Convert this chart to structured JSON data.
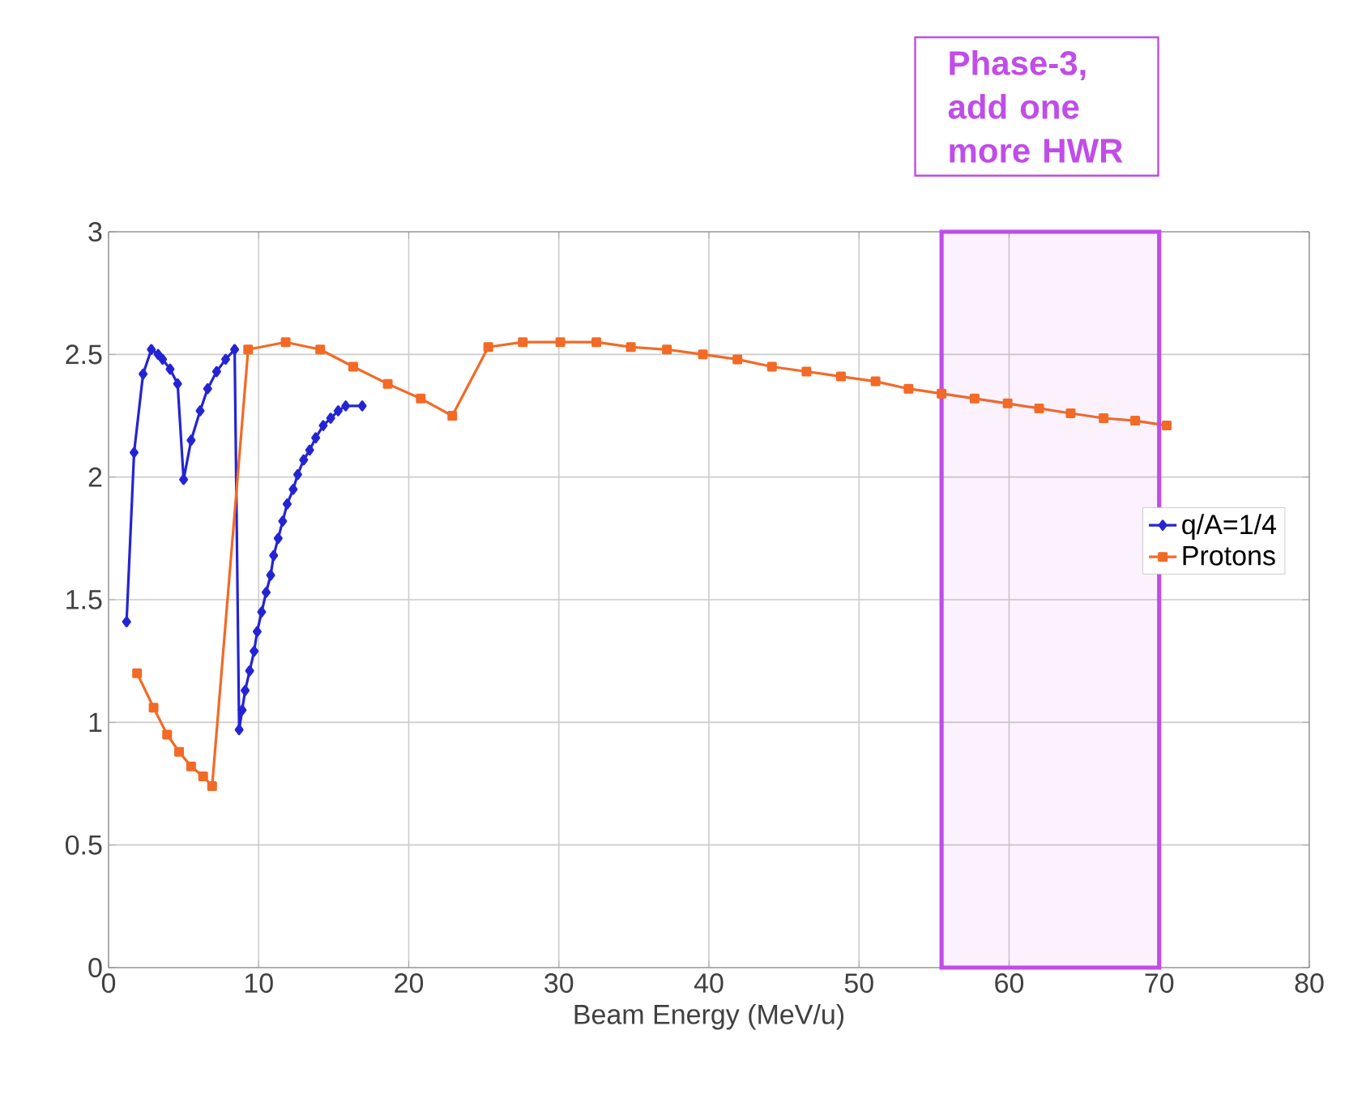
{
  "chart_data": {
    "type": "line",
    "xlabel": "Beam Energy (MeV/u)",
    "xlim": [
      0,
      80
    ],
    "ylim": [
      0,
      3
    ],
    "xticks": [
      0,
      10,
      20,
      30,
      40,
      50,
      60,
      70,
      80
    ],
    "yticks": [
      0,
      0.5,
      1,
      1.5,
      2,
      2.5,
      3
    ],
    "grid": true,
    "legend": "right",
    "series": [
      {
        "name": "q/A=1/4",
        "color": "#2424d4",
        "marker": "diamond",
        "x": [
          1.2,
          1.7,
          2.3,
          2.85,
          3.3,
          3.6,
          4.1,
          4.6,
          5.0,
          5.5,
          6.1,
          6.6,
          7.2,
          7.8,
          8.4,
          8.7,
          8.9,
          9.1,
          9.4,
          9.7,
          9.9,
          10.2,
          10.5,
          10.8,
          11.0,
          11.3,
          11.6,
          11.9,
          12.3,
          12.6,
          13.0,
          13.4,
          13.8,
          14.3,
          14.8,
          15.3,
          15.8,
          16.9
        ],
        "values": [
          1.41,
          2.1,
          2.42,
          2.52,
          2.5,
          2.48,
          2.44,
          2.38,
          1.99,
          2.15,
          2.27,
          2.36,
          2.43,
          2.48,
          2.52,
          0.97,
          1.05,
          1.13,
          1.21,
          1.29,
          1.37,
          1.45,
          1.53,
          1.6,
          1.68,
          1.75,
          1.82,
          1.89,
          1.95,
          2.01,
          2.07,
          2.11,
          2.16,
          2.21,
          2.24,
          2.27,
          2.29,
          2.29
        ]
      },
      {
        "name": "Protons",
        "color": "#f26a26",
        "marker": "square",
        "x": [
          1.9,
          3.0,
          3.9,
          4.7,
          5.5,
          6.3,
          6.9,
          9.3,
          11.8,
          14.1,
          16.3,
          18.6,
          20.8,
          22.9,
          25.3,
          27.6,
          30.1,
          32.5,
          34.8,
          37.2,
          39.6,
          41.9,
          44.2,
          46.5,
          48.8,
          51.1,
          53.3,
          55.5,
          57.7,
          59.9,
          62.0,
          64.1,
          66.3,
          68.4,
          70.5
        ],
        "values": [
          1.2,
          1.06,
          0.95,
          0.88,
          0.82,
          0.78,
          0.74,
          2.52,
          2.55,
          2.52,
          2.45,
          2.38,
          2.32,
          2.25,
          2.53,
          2.55,
          2.55,
          2.55,
          2.53,
          2.52,
          2.5,
          2.48,
          2.45,
          2.43,
          2.41,
          2.39,
          2.36,
          2.34,
          2.32,
          2.3,
          2.28,
          2.26,
          2.24,
          2.23,
          2.21
        ]
      }
    ],
    "bands": [
      {
        "axis": "x",
        "from": 55.5,
        "to": 70,
        "label": "Phase-3,\nadd one more HWR",
        "color": "#c04de8"
      }
    ]
  }
}
